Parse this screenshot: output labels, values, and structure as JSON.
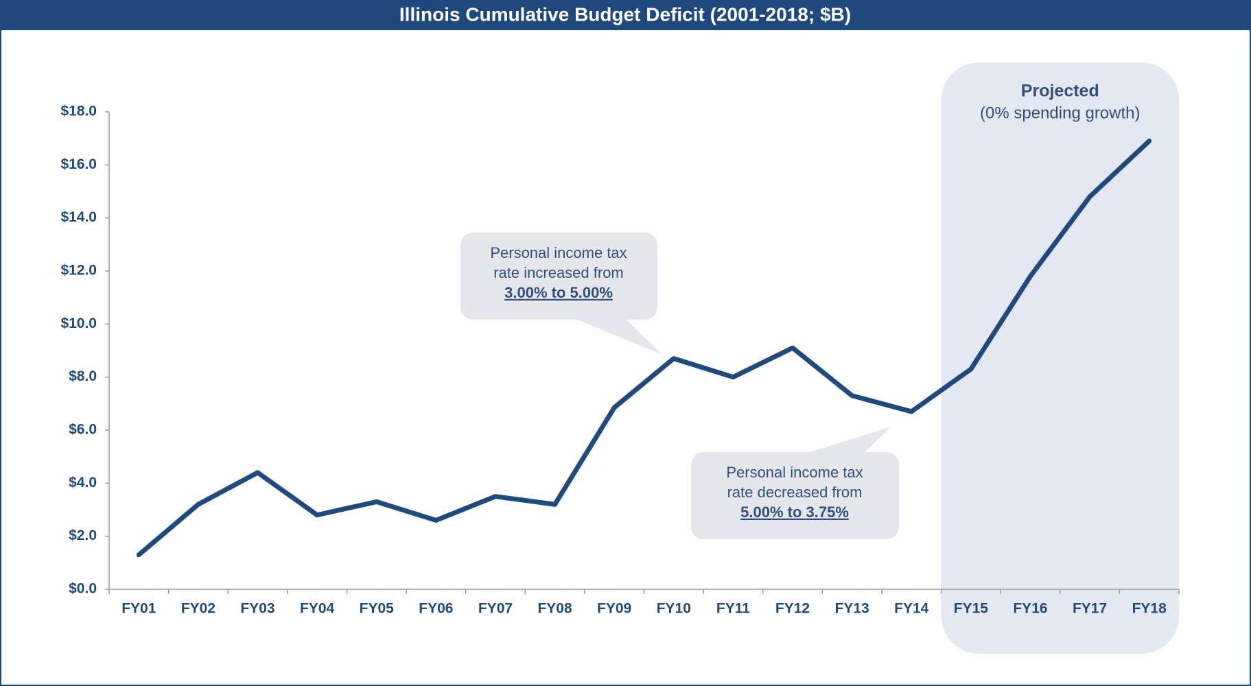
{
  "chart_data": {
    "type": "line",
    "title": "Illinois Cumulative Budget Deficit (2001-2018; $B)",
    "categories": [
      "FY01",
      "FY02",
      "FY03",
      "FY04",
      "FY05",
      "FY06",
      "FY07",
      "FY08",
      "FY09",
      "FY10",
      "FY11",
      "FY12",
      "FY13",
      "FY14",
      "FY15",
      "FY16",
      "FY17",
      "FY18"
    ],
    "series": [
      {
        "color": "#1f4a7e",
        "values": [
          1.3,
          3.2,
          4.4,
          2.8,
          3.3,
          2.6,
          3.5,
          3.2,
          6.85,
          8.7,
          8.0,
          9.1,
          7.3,
          6.7,
          8.3,
          11.8,
          14.8,
          16.9
        ]
      }
    ],
    "ylim": [
      0,
      18
    ],
    "yticks": [
      {
        "value": 0,
        "label": "$0.0"
      },
      {
        "value": 2,
        "label": "$2.0"
      },
      {
        "value": 4,
        "label": "$4.0"
      },
      {
        "value": 6,
        "label": "$6.0"
      },
      {
        "value": 8,
        "label": "$8.0"
      },
      {
        "value": 10,
        "label": "$10.0"
      },
      {
        "value": 12,
        "label": "$12.0"
      },
      {
        "value": 14,
        "label": "$14.0"
      },
      {
        "value": 16,
        "label": "$16.0"
      },
      {
        "value": 18,
        "label": "$18.0"
      }
    ],
    "projection": {
      "title": "Projected",
      "subtitle": "(0% spending growth)"
    },
    "annotations": [
      {
        "lines": [
          "Personal income tax",
          "rate increased from"
        ],
        "emphasis": "3.00% to 5.00%"
      },
      {
        "lines": [
          "Personal income tax",
          "rate decreased from"
        ],
        "emphasis": "5.00% to 3.75%"
      }
    ]
  }
}
